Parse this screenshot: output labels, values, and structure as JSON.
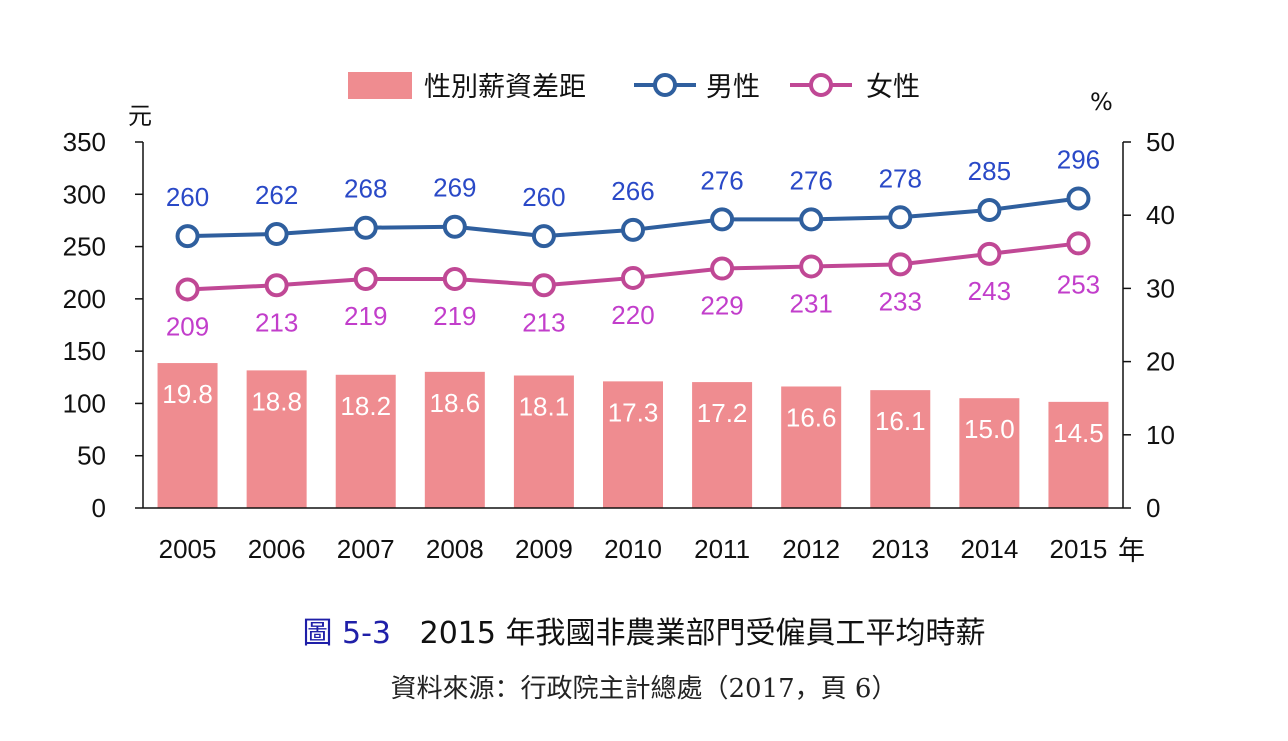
{
  "chart_data": {
    "type": "bar",
    "categories": [
      "2005",
      "2006",
      "2007",
      "2008",
      "2009",
      "2010",
      "2011",
      "2012",
      "2013",
      "2014",
      "2015"
    ],
    "x_unit": "年",
    "left_axis": {
      "unit": "元",
      "ticks": [
        "0",
        "50",
        "100",
        "150",
        "200",
        "250",
        "300",
        "350"
      ],
      "range": [
        0,
        350
      ]
    },
    "right_axis": {
      "unit": "%",
      "ticks": [
        "0",
        "10",
        "20",
        "30",
        "40",
        "50"
      ],
      "range": [
        0,
        50
      ]
    },
    "legend": {
      "position": "top-center",
      "items": [
        "性別薪資差距",
        "男性",
        "女性"
      ]
    },
    "series": [
      {
        "name": "性別薪資差距",
        "type": "bar",
        "axis": "right",
        "color": "#ef8c90",
        "values": [
          19.8,
          18.8,
          18.2,
          18.6,
          18.1,
          17.3,
          17.2,
          16.6,
          16.1,
          15.0,
          14.5
        ]
      },
      {
        "name": "男性",
        "type": "line",
        "axis": "left",
        "color": "#2f5f9e",
        "label_color": "#2a49c7",
        "values": [
          260,
          262,
          268,
          269,
          260,
          266,
          276,
          276,
          278,
          285,
          296
        ]
      },
      {
        "name": "女性",
        "type": "line",
        "axis": "left",
        "color": "#c04895",
        "label_color": "#c23ecb",
        "values": [
          209,
          213,
          219,
          219,
          213,
          220,
          229,
          231,
          233,
          243,
          253
        ]
      }
    ]
  },
  "caption": {
    "figure_label": "圖 5-3",
    "title": "2015 年我國非農業部門受僱員工平均時薪",
    "source": "資料來源：行政院主計總處（2017，頁 6）"
  }
}
